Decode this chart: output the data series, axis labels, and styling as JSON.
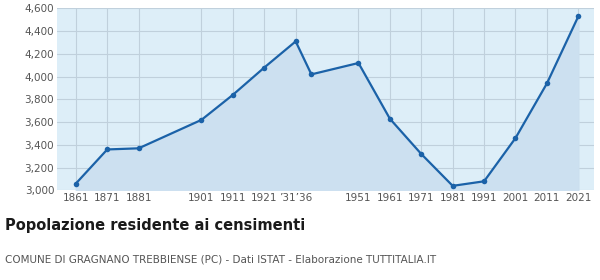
{
  "years": [
    1861,
    1871,
    1881,
    1901,
    1911,
    1921,
    1931,
    1936,
    1951,
    1961,
    1971,
    1981,
    1991,
    2001,
    2011,
    2021
  ],
  "population": [
    3060,
    3360,
    3370,
    3620,
    3840,
    4080,
    4310,
    4020,
    4120,
    3630,
    3320,
    3040,
    3080,
    3460,
    3940,
    4530
  ],
  "tick_positions": [
    1861,
    1871,
    1881,
    1901,
    1911,
    1921,
    1931,
    1951,
    1961,
    1971,
    1981,
    1991,
    2001,
    2011,
    2021
  ],
  "tick_labels": [
    "1861",
    "1871",
    "1881",
    "1901",
    "1911",
    "1921",
    "’31’36",
    "1951",
    "1961",
    "1971",
    "1981",
    "1991",
    "2001",
    "2011",
    "2021"
  ],
  "ylim": [
    3000,
    4600
  ],
  "yticks": [
    3000,
    3200,
    3400,
    3600,
    3800,
    4000,
    4200,
    4400,
    4600
  ],
  "xlim_left": 1855,
  "xlim_right": 2026,
  "line_color": "#1b62a8",
  "fill_color": "#cce0f0",
  "plot_bg_color": "#ddeef8",
  "fig_bg_color": "#ffffff",
  "grid_color": "#c0d0dc",
  "marker_color": "#1b62a8",
  "title": "Popolazione residente ai censimenti",
  "subtitle": "COMUNE DI GRAGNANO TREBBIENSE (PC) - Dati ISTAT - Elaborazione TUTTITALIA.IT",
  "title_fontsize": 10.5,
  "subtitle_fontsize": 7.5,
  "tick_fontsize": 7.5
}
